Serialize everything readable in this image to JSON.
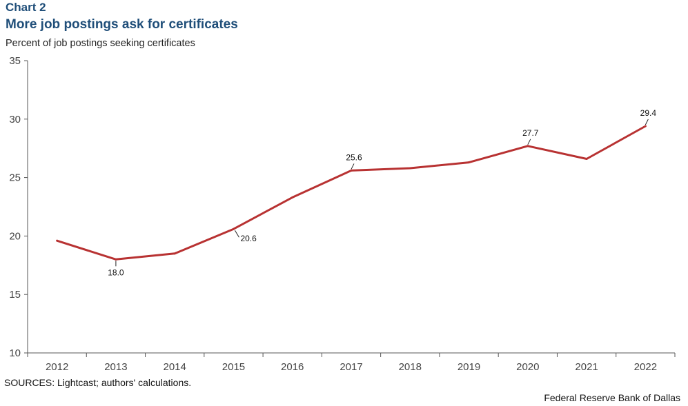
{
  "header": {
    "chart_number": "Chart 2",
    "title": "More job postings ask for certificates",
    "ylabel": "Percent of job postings seeking certificates"
  },
  "footer": {
    "sources": "SOURCES: Lightcast; authors' calculations.",
    "credit": "Federal Reserve Bank of Dallas"
  },
  "chart_data": {
    "type": "line",
    "title": "More job postings ask for certificates",
    "ylabel": "Percent of job postings seeking certificates",
    "xlabel": "",
    "categories": [
      "2012",
      "2013",
      "2014",
      "2015",
      "2016",
      "2017",
      "2018",
      "2019",
      "2020",
      "2021",
      "2022"
    ],
    "series": [
      {
        "values": [
          19.6,
          18.0,
          18.5,
          20.6,
          23.3,
          25.6,
          25.8,
          26.3,
          27.7,
          26.6,
          29.4
        ]
      }
    ],
    "data_labels": [
      {
        "index": 1,
        "text": "18.0",
        "position": "below"
      },
      {
        "index": 3,
        "text": "20.6",
        "position": "below-right"
      },
      {
        "index": 5,
        "text": "25.6",
        "position": "above"
      },
      {
        "index": 8,
        "text": "27.7",
        "position": "above"
      },
      {
        "index": 10,
        "text": "29.4",
        "position": "above"
      }
    ],
    "ylim": [
      10,
      35
    ],
    "yticks": [
      10,
      15,
      20,
      25,
      30,
      35
    ],
    "grid": false,
    "legend": "none",
    "line_color": "#b83232"
  }
}
